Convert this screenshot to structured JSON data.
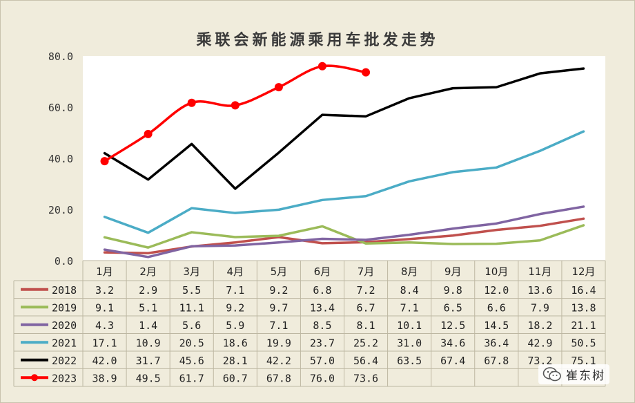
{
  "chart_data": {
    "type": "line",
    "title": "乘联会新能源乘用车批发走势",
    "xlabel": "",
    "ylabel": "",
    "ylim": [
      0,
      80
    ],
    "yticks": [
      "0.0",
      "20.0",
      "40.0",
      "60.0",
      "80.0"
    ],
    "ytick_values": [
      0,
      20,
      40,
      60,
      80
    ],
    "categories": [
      "1月",
      "2月",
      "3月",
      "4月",
      "5月",
      "6月",
      "7月",
      "8月",
      "9月",
      "10月",
      "11月",
      "12月"
    ],
    "grid": false,
    "legend": "data-table",
    "series": [
      {
        "name": "2018",
        "color": "#c0504d",
        "markers": false,
        "values": [
          3.2,
          2.9,
          5.5,
          7.1,
          9.2,
          6.8,
          7.2,
          8.4,
          9.8,
          12.0,
          13.6,
          16.4
        ],
        "labels": [
          "3.2",
          "2.9",
          "5.5",
          "7.1",
          "9.2",
          "6.8",
          "7.2",
          "8.4",
          "9.8",
          "12.0",
          "13.6",
          "16.4"
        ]
      },
      {
        "name": "2019",
        "color": "#9bbb59",
        "markers": false,
        "values": [
          9.1,
          5.1,
          11.1,
          9.2,
          9.7,
          13.4,
          6.7,
          7.1,
          6.5,
          6.6,
          7.9,
          13.8
        ],
        "labels": [
          "9.1",
          "5.1",
          "11.1",
          "9.2",
          "9.7",
          "13.4",
          "6.7",
          "7.1",
          "6.5",
          "6.6",
          "7.9",
          "13.8"
        ]
      },
      {
        "name": "2020",
        "color": "#8064a2",
        "markers": false,
        "values": [
          4.3,
          1.4,
          5.6,
          5.9,
          7.1,
          8.5,
          8.1,
          10.1,
          12.5,
          14.5,
          18.2,
          21.1
        ],
        "labels": [
          "4.3",
          "1.4",
          "5.6",
          "5.9",
          "7.1",
          "8.5",
          "8.1",
          "10.1",
          "12.5",
          "14.5",
          "18.2",
          "21.1"
        ]
      },
      {
        "name": "2021",
        "color": "#4bacc6",
        "markers": false,
        "values": [
          17.1,
          10.9,
          20.5,
          18.6,
          19.9,
          23.7,
          25.2,
          31.0,
          34.6,
          36.4,
          42.9,
          50.5
        ],
        "labels": [
          "17.1",
          "10.9",
          "20.5",
          "18.6",
          "19.9",
          "23.7",
          "25.2",
          "31.0",
          "34.6",
          "36.4",
          "42.9",
          "50.5"
        ]
      },
      {
        "name": "2022",
        "color": "#000000",
        "markers": false,
        "values": [
          42.0,
          31.7,
          45.6,
          28.1,
          42.2,
          57.0,
          56.4,
          63.5,
          67.4,
          67.8,
          73.2,
          75.1
        ],
        "labels": [
          "42.0",
          "31.7",
          "45.6",
          "28.1",
          "42.2",
          "57.0",
          "56.4",
          "63.5",
          "67.4",
          "67.8",
          "73.2",
          "75.1"
        ]
      },
      {
        "name": "2023",
        "color": "#ff0000",
        "markers": true,
        "values": [
          38.9,
          49.5,
          61.7,
          60.7,
          67.8,
          76.0,
          73.6,
          null,
          null,
          null,
          null,
          null
        ],
        "labels": [
          "38.9",
          "49.5",
          "61.7",
          "60.7",
          "67.8",
          "76.0",
          "73.6",
          "",
          "",
          "",
          "",
          ""
        ]
      }
    ]
  },
  "watermark": {
    "text": "崔东树",
    "icon": "wechat-icon"
  }
}
